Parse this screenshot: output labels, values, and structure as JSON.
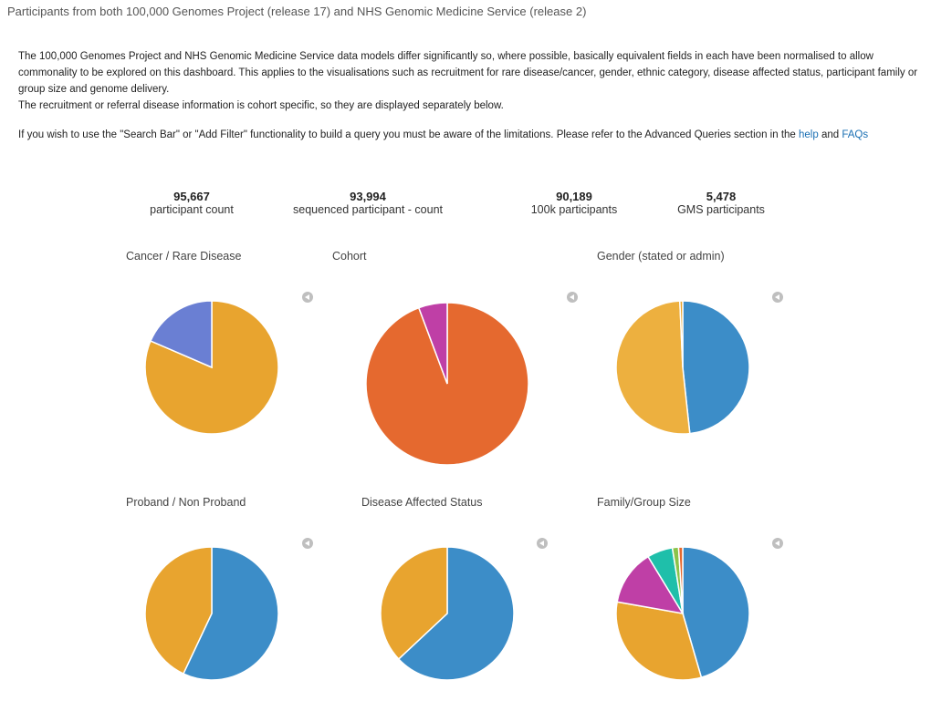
{
  "header": {
    "title": "Participants from both 100,000 Genomes Project (release 17) and NHS Genomic Medicine Service (release 2)"
  },
  "intro": {
    "p1": "The 100,000 Genomes Project and NHS Genomic Medicine Service data models differ significantly so, where possible, basically equivalent fields in each have been normalised to allow commonality to be explored on this dashboard. This applies to the visualisations such as recruitment for rare disease/cancer, gender, ethnic category, disease affected status, participant family or group size and genome delivery.",
    "p2": "The recruitment or referral disease information is cohort specific, so they are displayed separately below.",
    "p3_before": "If you wish to use the \"Search Bar\" or \"Add Filter\" functionality to build a query you must be aware of the limitations. Please refer to the Advanced Queries section in the ",
    "help_link": "help",
    "p3_and": " and ",
    "faqs_link": "FAQs"
  },
  "stats": [
    {
      "value": "95,667",
      "label": "participant count"
    },
    {
      "value": "93,994",
      "label": "sequenced participant - count"
    },
    {
      "value": "90,189",
      "label": "100k participants"
    },
    {
      "value": "5,478",
      "label": "GMS participants"
    }
  ],
  "chart_data": [
    {
      "type": "pie",
      "title": "Cancer / Rare Disease",
      "slices": [
        {
          "value": 81.5,
          "color": "#E8A42F"
        },
        {
          "value": 18.5,
          "color": "#6A7FD3"
        }
      ]
    },
    {
      "type": "pie",
      "title": "Cohort",
      "slices": [
        {
          "value": 94.3,
          "color": "#E5692F"
        },
        {
          "value": 5.7,
          "color": "#BF3FA6"
        }
      ]
    },
    {
      "type": "pie",
      "title": "Gender (stated or admin)",
      "slices": [
        {
          "value": 48.3,
          "color": "#3C8DC8"
        },
        {
          "value": 51.0,
          "color": "#EDB03F"
        },
        {
          "value": 0.7,
          "color": "#E8A42F"
        }
      ]
    },
    {
      "type": "pie",
      "title": "Proband / Non Proband",
      "slices": [
        {
          "value": 57.0,
          "color": "#3C8DC8"
        },
        {
          "value": 43.0,
          "color": "#E8A42F"
        }
      ]
    },
    {
      "type": "pie",
      "title": "Disease Affected Status",
      "slices": [
        {
          "value": 63.0,
          "color": "#3C8DC8"
        },
        {
          "value": 37.0,
          "color": "#E8A42F"
        }
      ]
    },
    {
      "type": "pie",
      "title": "Family/Group Size",
      "slices": [
        {
          "value": 45.5,
          "color": "#3C8DC8"
        },
        {
          "value": 32.3,
          "color": "#E8A42F"
        },
        {
          "value": 13.5,
          "color": "#BF3FA6"
        },
        {
          "value": 6.2,
          "color": "#1FBFAA"
        },
        {
          "value": 1.5,
          "color": "#8BC34A"
        },
        {
          "value": 1.0,
          "color": "#E5692F"
        }
      ]
    }
  ]
}
